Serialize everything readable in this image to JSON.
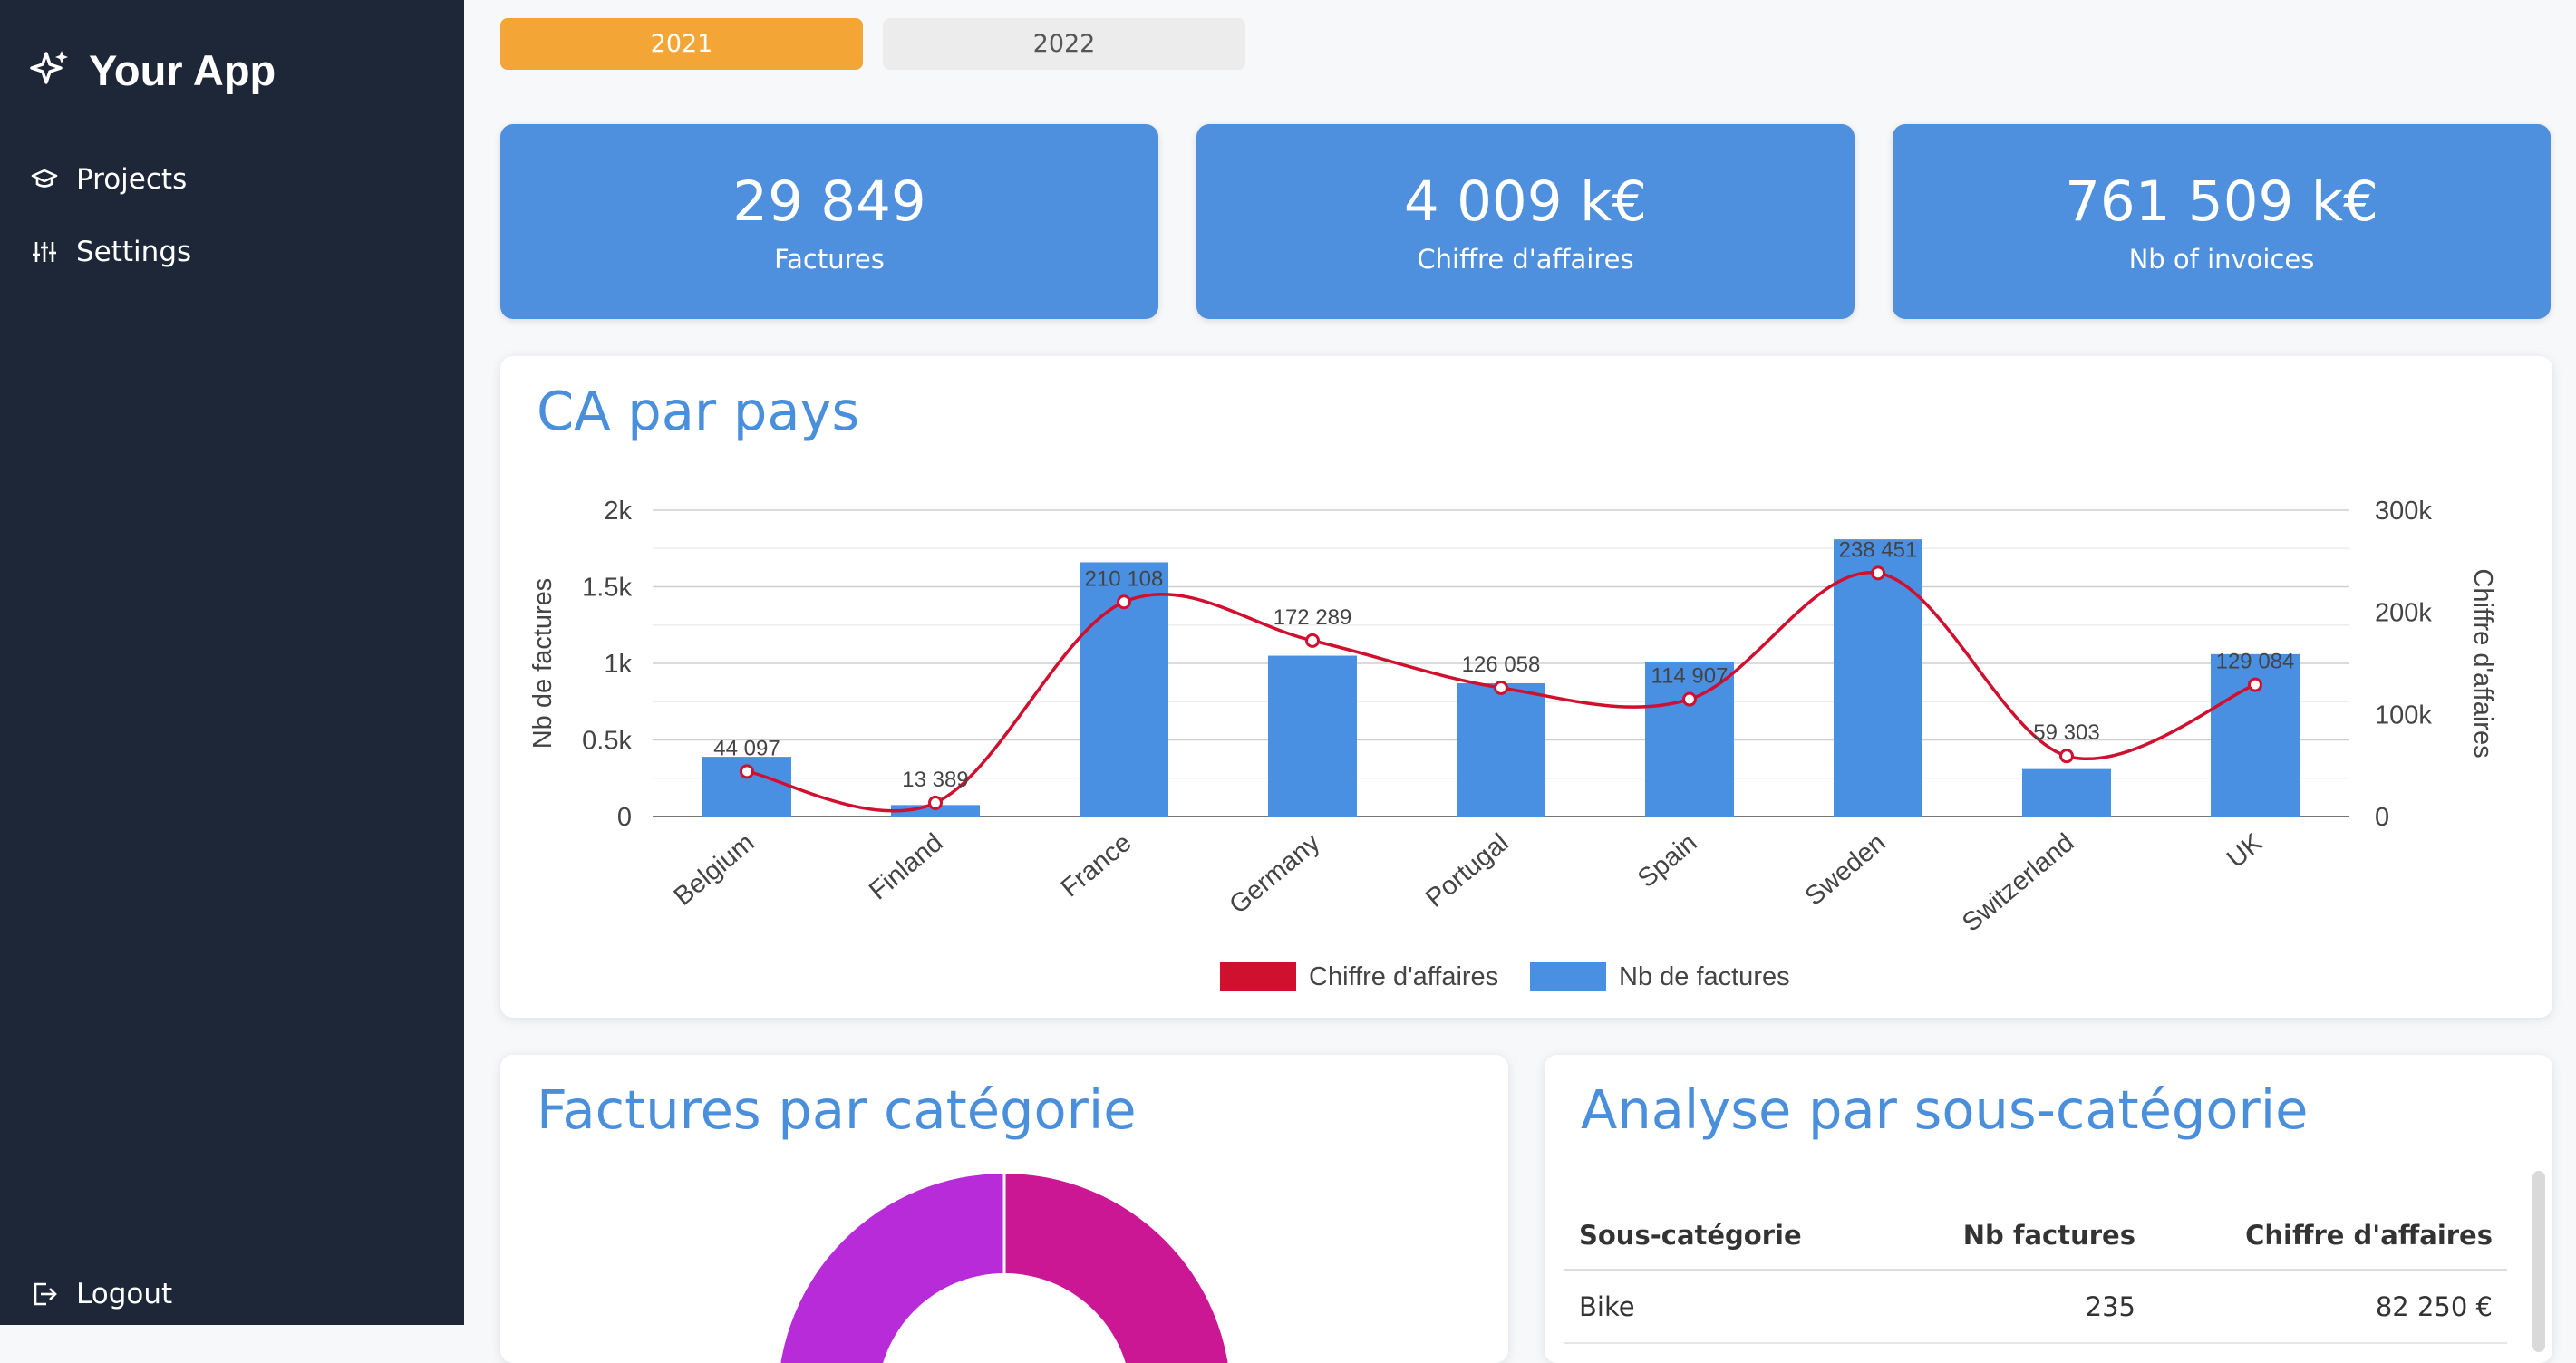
{
  "app": {
    "title": "Your App"
  },
  "sidebar": {
    "items": [
      {
        "label": "Projects",
        "icon": "graduation-cap-icon"
      },
      {
        "label": "Settings",
        "icon": "sliders-icon"
      }
    ],
    "logout": {
      "label": "Logout",
      "icon": "logout-icon"
    }
  },
  "years": [
    {
      "label": "2021",
      "active": true
    },
    {
      "label": "2022",
      "active": false
    }
  ],
  "kpis": [
    {
      "value": "29 849",
      "label": "Factures"
    },
    {
      "value": "4 009 k€",
      "label": "Chiffre d'affaires"
    },
    {
      "value": "761 509 k€",
      "label": "Nb of invoices"
    }
  ],
  "colors": {
    "accent": "#4e90de",
    "tab_active": "#f3a536",
    "line": "#d0102f",
    "sidebar": "#1e2738"
  },
  "chart_data": {
    "type": "bar",
    "title": "CA par pays",
    "categories": [
      "Belgium",
      "Finland",
      "France",
      "Germany",
      "Portugal",
      "Spain",
      "Sweden",
      "Switzerland",
      "UK"
    ],
    "series": [
      {
        "name": "Nb de factures",
        "kind": "bar",
        "axis": "left",
        "color": "#4a90e2",
        "values": [
          390,
          75,
          1660,
          1050,
          870,
          1010,
          1810,
          310,
          1060
        ]
      },
      {
        "name": "Chiffre d'affaires",
        "kind": "line",
        "axis": "right",
        "color": "#d0102f",
        "values": [
          44097,
          13389,
          210108,
          172289,
          126058,
          114907,
          238451,
          59303,
          129084
        ],
        "labels": [
          "44 097",
          "13 389",
          "210 108",
          "172 289",
          "126 058",
          "114 907",
          "238 451",
          "59 303",
          "129 084"
        ]
      }
    ],
    "ylabel": "Nb de factures",
    "ylabel_right": "Chiffre d'affaires",
    "ylim": [
      0,
      2000
    ],
    "ylim_right": [
      0,
      300000
    ],
    "yticks": [
      "0",
      "0.5k",
      "1k",
      "1.5k",
      "2k"
    ],
    "yticks_right": [
      "0",
      "100k",
      "200k",
      "300k"
    ],
    "legend": [
      "Chiffre d'affaires",
      "Nb de factures"
    ],
    "legend_position": "bottom",
    "grid": true
  },
  "donut_panel": {
    "title": "Factures par catégorie"
  },
  "table_panel": {
    "title": "Analyse par sous-catégorie",
    "headers": [
      "Sous-catégorie",
      "Nb factures",
      "Chiffre d'affaires"
    ],
    "rows": [
      {
        "name": "Bike",
        "count": "235",
        "revenue": "82 250 €"
      }
    ]
  }
}
